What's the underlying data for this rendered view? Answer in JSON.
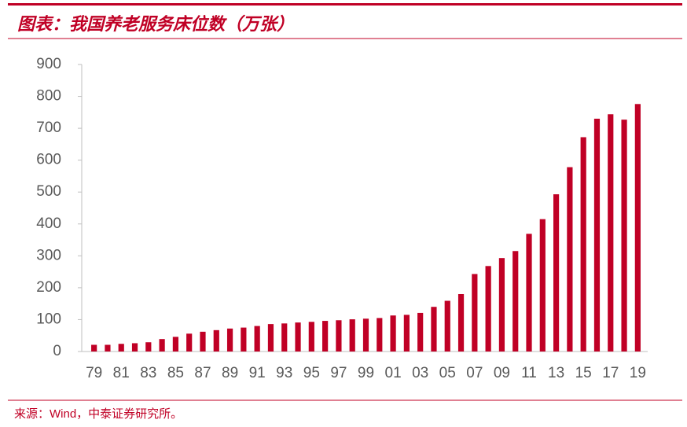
{
  "chart_data": {
    "type": "bar",
    "title": "图表：我国养老服务床位数（万张）",
    "source": "来源：Wind，中泰证券研究所。",
    "categories": [
      "79",
      null,
      "81",
      null,
      "83",
      null,
      "85",
      null,
      "87",
      null,
      "89",
      null,
      "91",
      null,
      "93",
      null,
      "95",
      null,
      "97",
      null,
      "99",
      null,
      "01",
      null,
      "03",
      null,
      "05",
      null,
      "07",
      null,
      "09",
      null,
      "11",
      null,
      "13",
      null,
      "15",
      null,
      "17",
      null,
      "19"
    ],
    "values": [
      21,
      21,
      24,
      26,
      29,
      39,
      46,
      56,
      62,
      67,
      72,
      75,
      80,
      86,
      88,
      91,
      93,
      96,
      98,
      101,
      103,
      105,
      113,
      115,
      121,
      140,
      159,
      180,
      243,
      268,
      293,
      315,
      369,
      415,
      493,
      578,
      672,
      730,
      744,
      727,
      776
    ],
    "color": "#c00025",
    "ylim": [
      0,
      900
    ],
    "yticks": [
      0,
      100,
      200,
      300,
      400,
      500,
      600,
      700,
      800,
      900
    ]
  }
}
